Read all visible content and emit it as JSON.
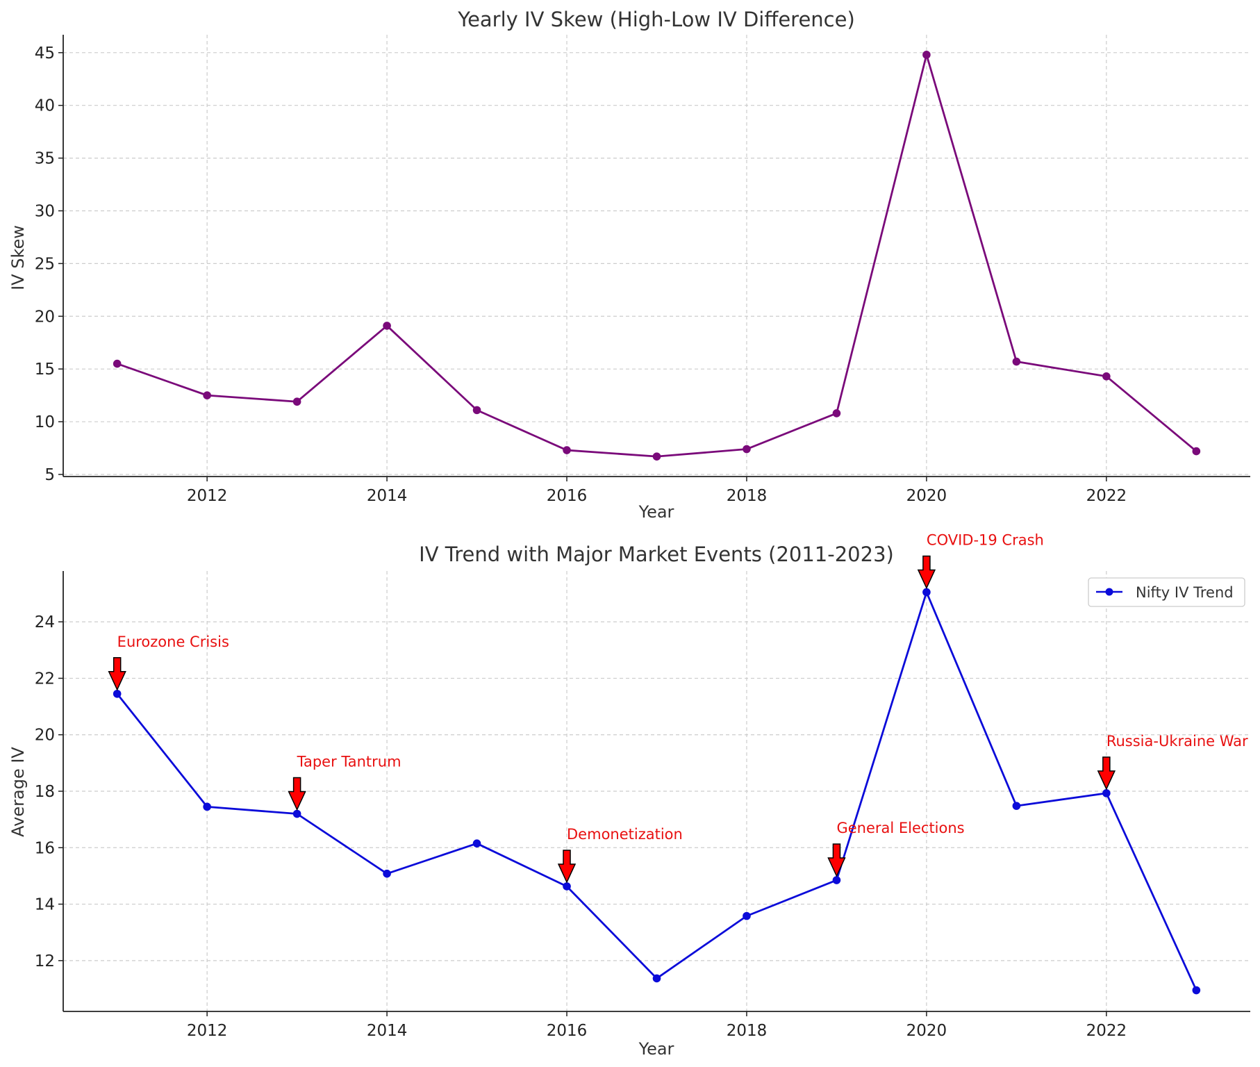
{
  "colors": {
    "skew_series": "#7a0a7a",
    "iv_series": "#0b0bd9",
    "event_text": "#e81010",
    "arrow_fill": "#ff0000"
  },
  "chart_data": [
    {
      "type": "line",
      "title": "Yearly IV Skew (High-Low IV Difference)",
      "xlabel": "Year",
      "ylabel": "IV Skew",
      "x": [
        2011,
        2012,
        2013,
        2014,
        2015,
        2016,
        2017,
        2018,
        2019,
        2020,
        2021,
        2022,
        2023
      ],
      "series": [
        {
          "values": [
            15.5,
            12.5,
            11.9,
            19.1,
            11.1,
            7.3,
            6.7,
            7.4,
            10.8,
            44.8,
            15.7,
            14.3,
            7.2
          ]
        }
      ],
      "xlim": [
        2010.4,
        2023.6
      ],
      "ylim": [
        4.8,
        46.7
      ],
      "xticks": [
        2012,
        2014,
        2016,
        2018,
        2020,
        2022
      ],
      "yticks": [
        5,
        10,
        15,
        20,
        25,
        30,
        35,
        40,
        45
      ],
      "grid": true,
      "legend": false
    },
    {
      "type": "line",
      "title": "IV Trend with Major Market Events (2011-2023)",
      "xlabel": "Year",
      "ylabel": "Average IV",
      "x": [
        2011,
        2012,
        2013,
        2014,
        2015,
        2016,
        2017,
        2018,
        2019,
        2020,
        2021,
        2022,
        2023
      ],
      "series": [
        {
          "name": "Nifty IV Trend",
          "values": [
            21.45,
            17.45,
            17.2,
            15.08,
            16.15,
            14.63,
            11.37,
            13.58,
            14.85,
            25.05,
            17.48,
            17.93,
            10.95
          ]
        }
      ],
      "xlim": [
        2010.4,
        2023.6
      ],
      "ylim": [
        10.2,
        25.8
      ],
      "xticks": [
        2012,
        2014,
        2016,
        2018,
        2020,
        2022
      ],
      "yticks": [
        12,
        14,
        16,
        18,
        20,
        22,
        24
      ],
      "grid": true,
      "legend": "top-right",
      "annotations": [
        {
          "text": "Eurozone Crisis",
          "x": 2011,
          "y": 21.45
        },
        {
          "text": "Taper Tantrum",
          "x": 2013,
          "y": 17.2
        },
        {
          "text": "Demonetization",
          "x": 2016,
          "y": 14.63
        },
        {
          "text": "General Elections",
          "x": 2019,
          "y": 14.85
        },
        {
          "text": "COVID-19 Crash",
          "x": 2020,
          "y": 25.05
        },
        {
          "text": "Russia-Ukraine War",
          "x": 2022,
          "y": 17.93
        }
      ]
    }
  ]
}
